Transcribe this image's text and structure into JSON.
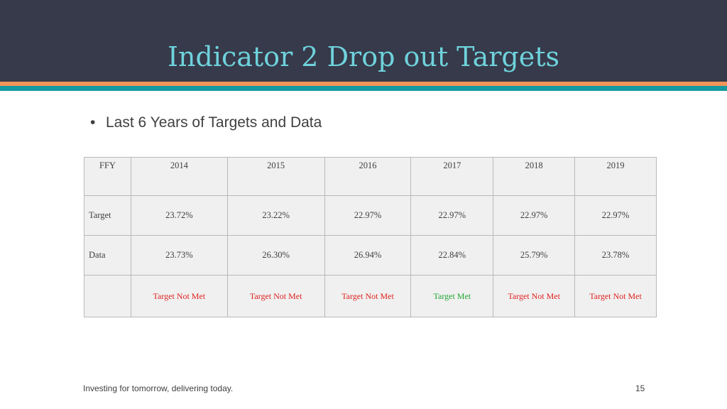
{
  "slide": {
    "title": "Indicator 2 Drop out Targets",
    "bullet": "Last 6 Years of Targets and Data",
    "footer": "Investing for tomorrow, delivering today.",
    "page_number": "15"
  },
  "table": {
    "headers": [
      "FFY",
      "2014",
      "2015",
      "2016",
      "2017",
      "2018",
      "2019"
    ],
    "rows": [
      {
        "label": "Target",
        "values": [
          "23.72%",
          "23.22%",
          "22.97%",
          "22.97%",
          "22.97%",
          "22.97%"
        ]
      },
      {
        "label": "Data",
        "values": [
          "23.73%",
          "26.30%",
          "26.94%",
          "22.84%",
          "25.79%",
          "23.78%"
        ]
      }
    ],
    "status": [
      {
        "text": "Target Not Met",
        "color": "#e02020"
      },
      {
        "text": "Target Not Met",
        "color": "#e02020"
      },
      {
        "text": "Target Not Met",
        "color": "#e02020"
      },
      {
        "text": "Target Met",
        "color": "#21a532"
      },
      {
        "text": "Target Not Met",
        "color": "#e02020"
      },
      {
        "text": "Target Not Met",
        "color": "#e02020"
      }
    ]
  },
  "colors": {
    "header_bg": "#363a4a",
    "title": "#6fd2dc",
    "stripe_orange": "#f0955a",
    "stripe_teal": "#139aa0"
  }
}
